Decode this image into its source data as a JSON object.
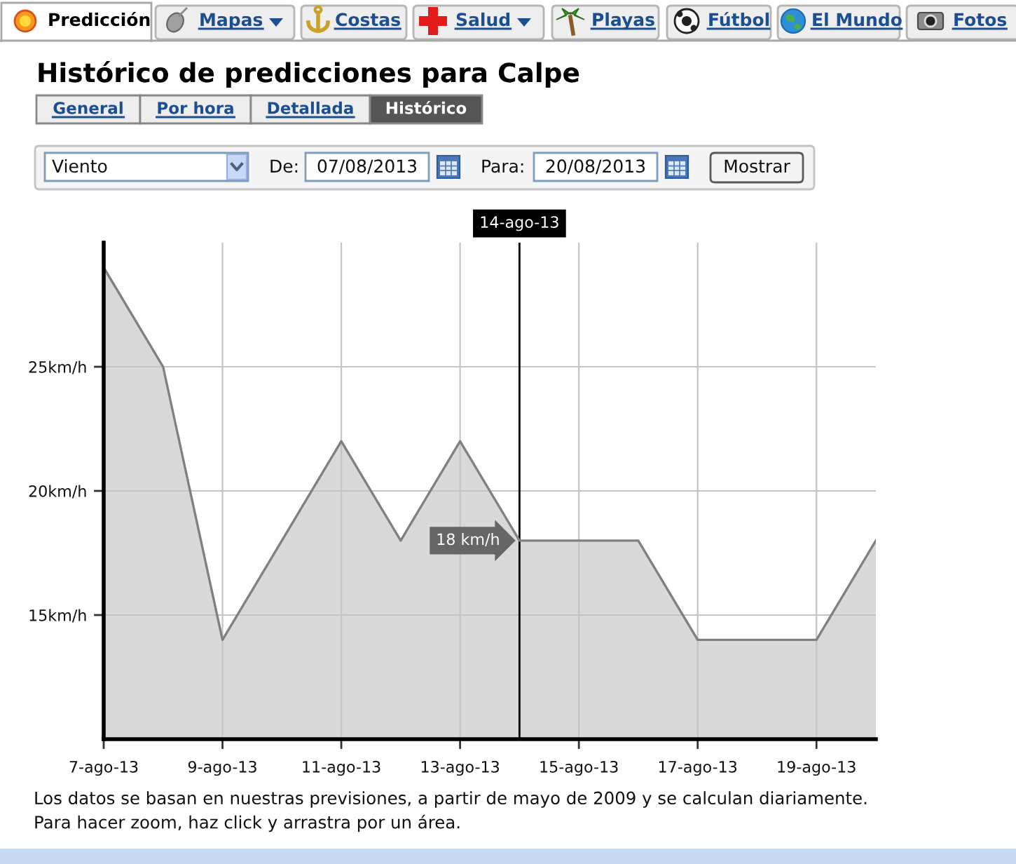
{
  "chart_data": {
    "type": "area",
    "title": "Histórico de predicciones para Calpe",
    "x": [
      "2013-08-07",
      "2013-08-08",
      "2013-08-09",
      "2013-08-10",
      "2013-08-11",
      "2013-08-12",
      "2013-08-13",
      "2013-08-14",
      "2013-08-15",
      "2013-08-16",
      "2013-08-17",
      "2013-08-18",
      "2013-08-19",
      "2013-08-20"
    ],
    "series": [
      {
        "color": "#d9d9d9",
        "values": [
          29,
          25,
          14,
          18,
          22,
          18,
          22,
          18,
          18,
          18,
          14,
          14,
          14,
          18
        ]
      }
    ],
    "xlim": [
      "2013-08-07",
      "2013-08-20"
    ],
    "xticks": [
      {
        "value": "2013-08-07",
        "label": "7-ago-13"
      },
      {
        "value": "2013-08-09",
        "label": "9-ago-13"
      },
      {
        "value": "2013-08-11",
        "label": "11-ago-13"
      },
      {
        "value": "2013-08-13",
        "label": "13-ago-13"
      },
      {
        "value": "2013-08-15",
        "label": "15-ago-13"
      },
      {
        "value": "2013-08-17",
        "label": "17-ago-13"
      },
      {
        "value": "2013-08-19",
        "label": "19-ago-13"
      }
    ],
    "ylim": [
      10,
      30
    ],
    "yticks": [
      {
        "value": 15,
        "label": "15km/h"
      },
      {
        "value": 20,
        "label": "20km/h"
      },
      {
        "value": 25,
        "label": "25km/h"
      }
    ],
    "grid": true,
    "ref_lines": [
      {
        "axis": "x",
        "value": "2013-08-14",
        "label": "14-ago-13",
        "color": "#000000"
      }
    ],
    "annotations": [
      "Predicción",
      "Mapas",
      "Costas",
      "Salud",
      "Playas",
      "Fútbol",
      "El Mundo",
      "Fotos",
      "General",
      "Por hora",
      "Detallada",
      "Histórico",
      "Viento",
      "De:",
      "07/08/2013",
      "Para:",
      "20/08/2013",
      "Mostrar",
      "Los datos se basan en nuestras previsiones, a partir de mayo de 2009 y se calculan diariamente.",
      "Para hacer zoom, haz click y arrastra por un área.",
      {
        "text": "18 km/h",
        "x": "2013-08-14",
        "y": 18
      }
    ]
  }
}
